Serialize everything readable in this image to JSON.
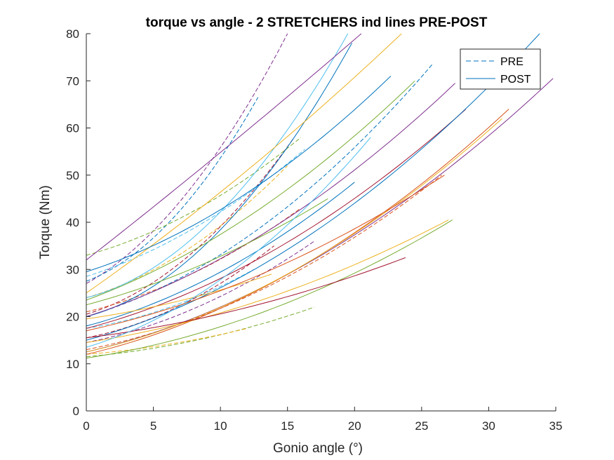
{
  "chart_data": {
    "type": "line",
    "title": "torque vs angle - 2 STRETCHERS ind lines PRE-POST",
    "xlabel": "Gonio angle (°)",
    "ylabel": "Torque (Nm)",
    "xlim": [
      0,
      35
    ],
    "ylim": [
      0,
      80
    ],
    "xticks": [
      0,
      5,
      10,
      15,
      20,
      25,
      30,
      35
    ],
    "yticks": [
      0,
      10,
      20,
      30,
      40,
      50,
      60,
      70,
      80
    ],
    "grid": false,
    "legend": {
      "position": "top-right",
      "entries": [
        {
          "label": "PRE",
          "style": "dashed",
          "color": "#0072BD"
        },
        {
          "label": "POST",
          "style": "solid",
          "color": "#0072BD"
        }
      ]
    },
    "colors": [
      "#0072BD",
      "#D95319",
      "#EDB120",
      "#7E2F8E",
      "#77AC30",
      "#4DBEEE",
      "#A2142F"
    ],
    "series": [
      {
        "style": "dashed",
        "color": "#7E2F8E",
        "x0": 0,
        "y0": 27.0,
        "x1": 15.0,
        "y1": 80.0,
        "curv": 0.55
      },
      {
        "style": "dashed",
        "color": "#0072BD",
        "x0": 0,
        "y0": 27.5,
        "x1": 12.8,
        "y1": 66.5,
        "curv": 0.65
      },
      {
        "style": "dashed",
        "color": "#A2142F",
        "x0": 0,
        "y0": 20.5,
        "x1": 15.5,
        "y1": 58.0,
        "curv": 0.65
      },
      {
        "style": "dashed",
        "color": "#4DBEEE",
        "x0": 0,
        "y0": 28.5,
        "x1": 16.3,
        "y1": 55.5,
        "curv": 0.45
      },
      {
        "style": "dashed",
        "color": "#77AC30",
        "x0": 0,
        "y0": 33.0,
        "x1": 16.0,
        "y1": 58.0,
        "curv": 0.5
      },
      {
        "style": "dashed",
        "color": "#EDB120",
        "x0": 0,
        "y0": 24.0,
        "x1": 15.0,
        "y1": 52.0,
        "curv": 0.55
      },
      {
        "style": "dashed",
        "color": "#D95319",
        "x0": 0,
        "y0": 21.0,
        "x1": 16.0,
        "y1": 43.0,
        "curv": 0.5
      },
      {
        "style": "dashed",
        "color": "#0072BD",
        "x0": 0,
        "y0": 20.0,
        "x1": 25.8,
        "y1": 73.5,
        "curv": 0.6
      },
      {
        "style": "dashed",
        "color": "#7E2F8E",
        "x0": 0,
        "y0": 14.5,
        "x1": 17.0,
        "y1": 36.0,
        "curv": 0.55
      },
      {
        "style": "dashed",
        "color": "#77AC30",
        "x0": 0,
        "y0": 11.5,
        "x1": 17.0,
        "y1": 22.0,
        "curv": 0.6
      },
      {
        "style": "dashed",
        "color": "#EDB120",
        "x0": 0,
        "y0": 12.0,
        "x1": 12.0,
        "y1": 17.5,
        "curv": 0.5
      },
      {
        "style": "dashed",
        "color": "#D95319",
        "x0": 0,
        "y0": 13.0,
        "x1": 26.5,
        "y1": 50.0,
        "curv": 0.6
      },
      {
        "style": "dashed",
        "color": "#4DBEEE",
        "x0": 0,
        "y0": 17.5,
        "x1": 12.5,
        "y1": 30.0,
        "curv": 0.55
      },
      {
        "style": "dashed",
        "color": "#A2142F",
        "x0": 0,
        "y0": 15.5,
        "x1": 14.0,
        "y1": 35.0,
        "curv": 0.6
      },
      {
        "style": "solid",
        "color": "#4DBEEE",
        "x0": 0,
        "y0": 24.0,
        "x1": 19.5,
        "y1": 80.0,
        "curv": 0.75
      },
      {
        "style": "solid",
        "color": "#0072BD",
        "x0": 0,
        "y0": 20.0,
        "x1": 19.8,
        "y1": 78.0,
        "curv": 0.75
      },
      {
        "style": "solid",
        "color": "#7E2F8E",
        "x0": 0,
        "y0": 32.0,
        "x1": 20.5,
        "y1": 80.0,
        "curv": 0.05
      },
      {
        "style": "solid",
        "color": "#EDB120",
        "x0": 0,
        "y0": 25.0,
        "x1": 23.5,
        "y1": 80.0,
        "curv": 0.15
      },
      {
        "style": "solid",
        "color": "#0072BD",
        "x0": 0,
        "y0": 29.5,
        "x1": 22.7,
        "y1": 71.0,
        "curv": 0.5
      },
      {
        "style": "solid",
        "color": "#77AC30",
        "x0": 0,
        "y0": 23.5,
        "x1": 24.5,
        "y1": 70.0,
        "curv": 0.45
      },
      {
        "style": "solid",
        "color": "#7E2F8E",
        "x0": 0,
        "y0": 20.0,
        "x1": 27.5,
        "y1": 69.5,
        "curv": 0.5
      },
      {
        "style": "solid",
        "color": "#A2142F",
        "x0": 0,
        "y0": 17.5,
        "x1": 28.3,
        "y1": 64.0,
        "curv": 0.55
      },
      {
        "style": "solid",
        "color": "#0072BD",
        "x0": 0,
        "y0": 15.0,
        "x1": 33.8,
        "y1": 80.0,
        "curv": 0.6
      },
      {
        "style": "solid",
        "color": "#7E2F8E",
        "x0": 0,
        "y0": 12.5,
        "x1": 34.8,
        "y1": 70.5,
        "curv": 0.6
      },
      {
        "style": "solid",
        "color": "#D95319",
        "x0": 0,
        "y0": 12.0,
        "x1": 31.5,
        "y1": 64.0,
        "curv": 0.6
      },
      {
        "style": "solid",
        "color": "#EDB120",
        "x0": 0,
        "y0": 12.5,
        "x1": 31.0,
        "y1": 62.0,
        "curv": 0.6
      },
      {
        "style": "solid",
        "color": "#77AC30",
        "x0": 0,
        "y0": 11.2,
        "x1": 27.3,
        "y1": 40.5,
        "curv": 0.6
      },
      {
        "style": "solid",
        "color": "#EDB120",
        "x0": 0,
        "y0": 14.5,
        "x1": 27.0,
        "y1": 40.5,
        "curv": 0.55
      },
      {
        "style": "solid",
        "color": "#A2142F",
        "x0": 0,
        "y0": 15.5,
        "x1": 23.8,
        "y1": 32.5,
        "curv": 0.5
      },
      {
        "style": "solid",
        "color": "#0072BD",
        "x0": 0,
        "y0": 18.0,
        "x1": 20.0,
        "y1": 48.5,
        "curv": 0.5
      },
      {
        "style": "solid",
        "color": "#77AC30",
        "x0": 0,
        "y0": 22.5,
        "x1": 18.0,
        "y1": 45.0,
        "curv": 0.4
      },
      {
        "style": "solid",
        "color": "#EDB120",
        "x0": 0,
        "y0": 19.5,
        "x1": 13.8,
        "y1": 29.0,
        "curv": 0.4
      },
      {
        "style": "solid",
        "color": "#4DBEEE",
        "x0": 0,
        "y0": 13.5,
        "x1": 21.2,
        "y1": 58.0,
        "curv": 0.6
      },
      {
        "style": "solid",
        "color": "#D95319",
        "x0": 0,
        "y0": 17.0,
        "x1": 26.7,
        "y1": 50.0,
        "curv": 0.5
      }
    ]
  }
}
